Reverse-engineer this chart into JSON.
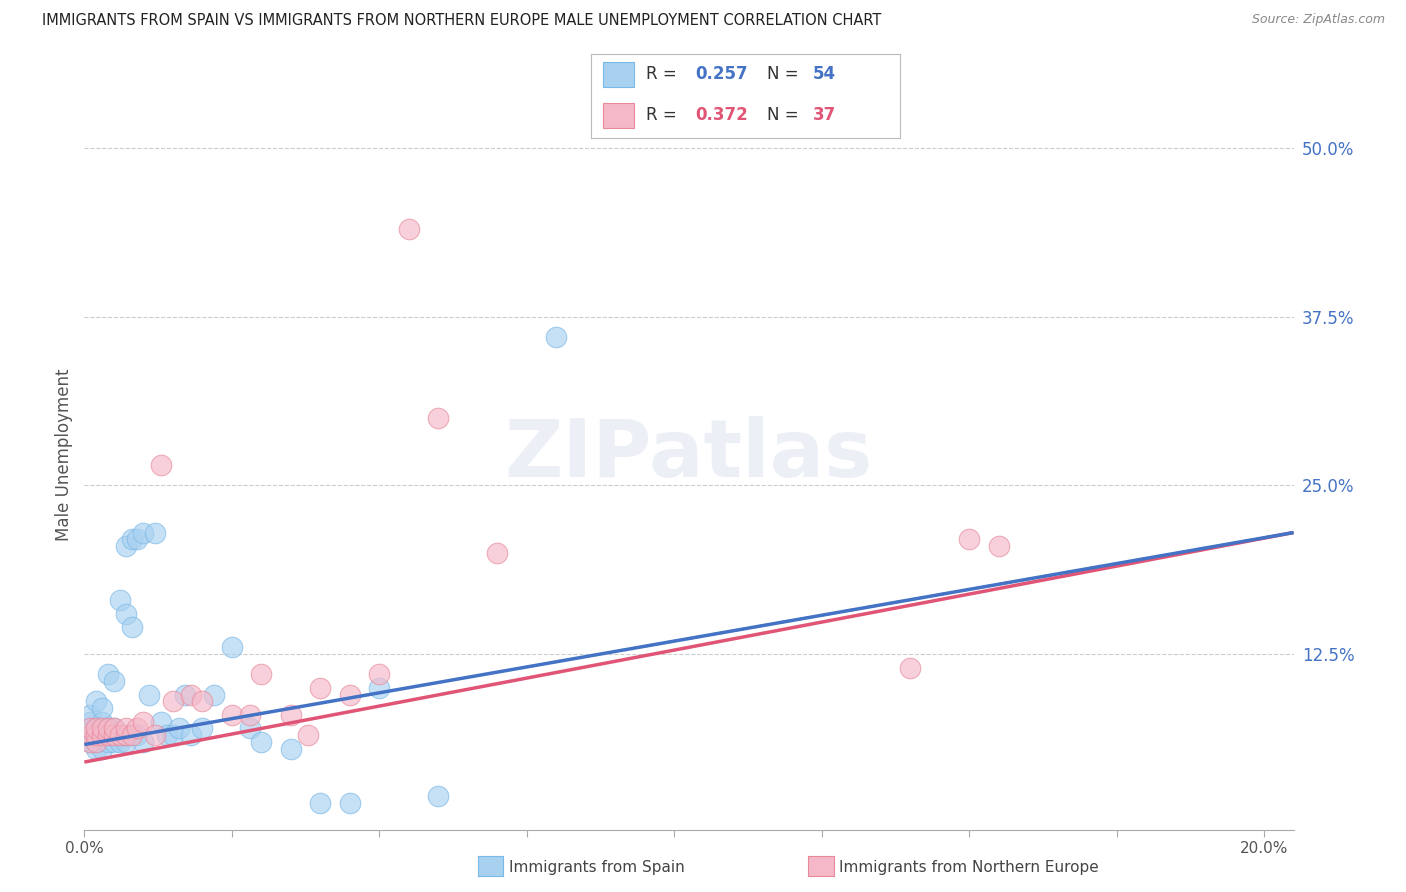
{
  "title": "IMMIGRANTS FROM SPAIN VS IMMIGRANTS FROM NORTHERN EUROPE MALE UNEMPLOYMENT CORRELATION CHART",
  "source": "Source: ZipAtlas.com",
  "ylabel": "Male Unemployment",
  "xlim": [
    0.0,
    0.205
  ],
  "ylim": [
    -0.005,
    0.55
  ],
  "color_spain": "#a8d1f0",
  "color_spain_edge": "#7ab8e8",
  "color_spain_line": "#4472C4",
  "color_northern": "#f4b8c8",
  "color_northern_edge": "#e8899a",
  "color_northern_line": "#e05575",
  "label_spain": "Immigrants from Spain",
  "label_northern": "Immigrants from Northern Europe",
  "legend_r1": "R = 0.257",
  "legend_n1": "N = 54",
  "legend_r2": "R = 0.372",
  "legend_n2": "N = 37",
  "legend_color_r1": "#4472C4",
  "legend_color_n1": "#4472C4",
  "legend_color_r2": "#e05575",
  "legend_color_n2": "#e05575",
  "spain_x": [
    0.001,
    0.001,
    0.001,
    0.001,
    0.001,
    0.002,
    0.002,
    0.002,
    0.002,
    0.002,
    0.003,
    0.003,
    0.003,
    0.003,
    0.004,
    0.004,
    0.004,
    0.004,
    0.005,
    0.005,
    0.005,
    0.005,
    0.006,
    0.006,
    0.006,
    0.007,
    0.007,
    0.007,
    0.007,
    0.008,
    0.008,
    0.009,
    0.009,
    0.01,
    0.01,
    0.011,
    0.012,
    0.013,
    0.014,
    0.015,
    0.016,
    0.017,
    0.018,
    0.02,
    0.022,
    0.025,
    0.028,
    0.03,
    0.035,
    0.04,
    0.045,
    0.05,
    0.06,
    0.08
  ],
  "spain_y": [
    0.06,
    0.065,
    0.07,
    0.075,
    0.08,
    0.055,
    0.06,
    0.065,
    0.07,
    0.09,
    0.055,
    0.065,
    0.075,
    0.085,
    0.06,
    0.065,
    0.07,
    0.11,
    0.06,
    0.065,
    0.07,
    0.105,
    0.06,
    0.065,
    0.165,
    0.06,
    0.065,
    0.155,
    0.205,
    0.145,
    0.21,
    0.065,
    0.21,
    0.06,
    0.215,
    0.095,
    0.215,
    0.075,
    0.065,
    0.065,
    0.07,
    0.095,
    0.065,
    0.07,
    0.095,
    0.13,
    0.07,
    0.06,
    0.055,
    0.015,
    0.015,
    0.1,
    0.02,
    0.36
  ],
  "northern_x": [
    0.001,
    0.001,
    0.001,
    0.002,
    0.002,
    0.002,
    0.003,
    0.003,
    0.004,
    0.004,
    0.005,
    0.005,
    0.006,
    0.007,
    0.007,
    0.008,
    0.009,
    0.01,
    0.012,
    0.013,
    0.015,
    0.018,
    0.02,
    0.025,
    0.028,
    0.03,
    0.035,
    0.038,
    0.04,
    0.045,
    0.05,
    0.055,
    0.06,
    0.07,
    0.14,
    0.15,
    0.155
  ],
  "northern_y": [
    0.06,
    0.065,
    0.07,
    0.06,
    0.065,
    0.07,
    0.065,
    0.07,
    0.065,
    0.07,
    0.065,
    0.07,
    0.065,
    0.065,
    0.07,
    0.065,
    0.07,
    0.075,
    0.065,
    0.265,
    0.09,
    0.095,
    0.09,
    0.08,
    0.08,
    0.11,
    0.08,
    0.065,
    0.1,
    0.095,
    0.11,
    0.44,
    0.3,
    0.2,
    0.115,
    0.21,
    0.205
  ],
  "trendline_start_x": 0.0,
  "trendline_end_x": 0.205,
  "spain_trend_y0": 0.058,
  "spain_trend_y1": 0.215,
  "northern_trend_y0": 0.045,
  "northern_trend_y1": 0.215
}
